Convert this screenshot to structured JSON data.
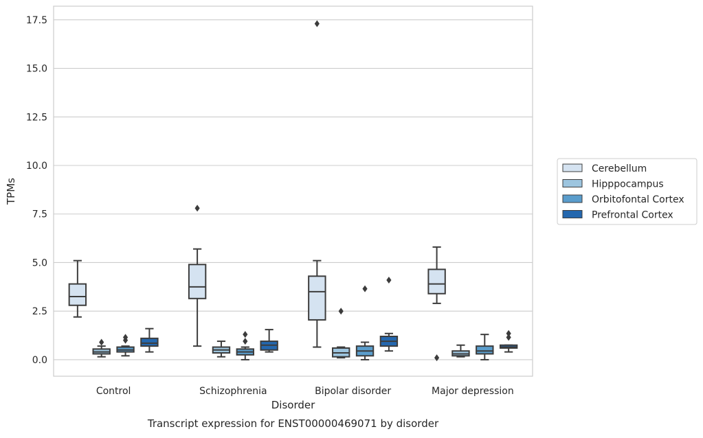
{
  "chart_data": {
    "type": "box",
    "caption": "Transcript expression for ENST00000469071 by disorder",
    "xlabel": "Disorder",
    "ylabel": "TPMs",
    "ylim": [
      -0.85,
      18.2
    ],
    "yticks": [
      0.0,
      2.5,
      5.0,
      7.5,
      10.0,
      12.5,
      15.0,
      17.5
    ],
    "ytick_labels": [
      "0.0",
      "2.5",
      "5.0",
      "7.5",
      "10.0",
      "12.5",
      "15.0",
      "17.5"
    ],
    "grid": "horizontal",
    "legend_position": "right",
    "categories": [
      "Control",
      "Schizophrenia",
      "Bipolar disorder",
      "Major depression"
    ],
    "series": [
      {
        "name": "Cerebellum",
        "color": "#d5e3f1",
        "boxes": [
          {
            "whislo": 2.2,
            "q1": 2.8,
            "med": 3.25,
            "q3": 3.9,
            "whishi": 5.1,
            "fliers": []
          },
          {
            "whislo": 0.7,
            "q1": 3.15,
            "med": 3.75,
            "q3": 4.9,
            "whishi": 5.7,
            "fliers": [
              7.8
            ]
          },
          {
            "whislo": 0.65,
            "q1": 2.05,
            "med": 3.5,
            "q3": 4.3,
            "whishi": 5.1,
            "fliers": [
              17.3
            ]
          },
          {
            "whislo": 2.9,
            "q1": 3.4,
            "med": 3.9,
            "q3": 4.65,
            "whishi": 5.8,
            "fliers": [
              0.1
            ]
          }
        ]
      },
      {
        "name": "Hipppocampus",
        "color": "#9dc5df",
        "boxes": [
          {
            "whislo": 0.15,
            "q1": 0.3,
            "med": 0.4,
            "q3": 0.55,
            "whishi": 0.7,
            "fliers": [
              0.9
            ]
          },
          {
            "whislo": 0.15,
            "q1": 0.35,
            "med": 0.5,
            "q3": 0.65,
            "whishi": 0.95,
            "fliers": []
          },
          {
            "whislo": 0.1,
            "q1": 0.15,
            "med": 0.35,
            "q3": 0.6,
            "whishi": 0.65,
            "fliers": [
              2.5
            ]
          },
          {
            "whislo": 0.15,
            "q1": 0.2,
            "med": 0.3,
            "q3": 0.45,
            "whishi": 0.75,
            "fliers": []
          }
        ]
      },
      {
        "name": "Orbitofontal Cortex",
        "color": "#5a9dcc",
        "boxes": [
          {
            "whislo": 0.2,
            "q1": 0.4,
            "med": 0.5,
            "q3": 0.65,
            "whishi": 0.7,
            "fliers": [
              1.0,
              1.15
            ]
          },
          {
            "whislo": 0.0,
            "q1": 0.25,
            "med": 0.4,
            "q3": 0.55,
            "whishi": 0.65,
            "fliers": [
              0.95,
              1.3
            ]
          },
          {
            "whislo": 0.0,
            "q1": 0.2,
            "med": 0.45,
            "q3": 0.7,
            "whishi": 0.9,
            "fliers": [
              3.65
            ]
          },
          {
            "whislo": 0.0,
            "q1": 0.3,
            "med": 0.45,
            "q3": 0.7,
            "whishi": 1.3,
            "fliers": []
          }
        ]
      },
      {
        "name": "Prefrontal Cortex",
        "color": "#2467ae",
        "boxes": [
          {
            "whislo": 0.4,
            "q1": 0.7,
            "med": 0.85,
            "q3": 1.1,
            "whishi": 1.6,
            "fliers": []
          },
          {
            "whislo": 0.4,
            "q1": 0.5,
            "med": 0.75,
            "q3": 0.95,
            "whishi": 1.55,
            "fliers": []
          },
          {
            "whislo": 0.45,
            "q1": 0.7,
            "med": 0.95,
            "q3": 1.2,
            "whishi": 1.35,
            "fliers": [
              4.1
            ]
          },
          {
            "whislo": 0.4,
            "q1": 0.6,
            "med": 0.65,
            "q3": 0.75,
            "whishi": 0.75,
            "fliers": [
              1.15,
              1.35
            ]
          }
        ]
      }
    ]
  }
}
